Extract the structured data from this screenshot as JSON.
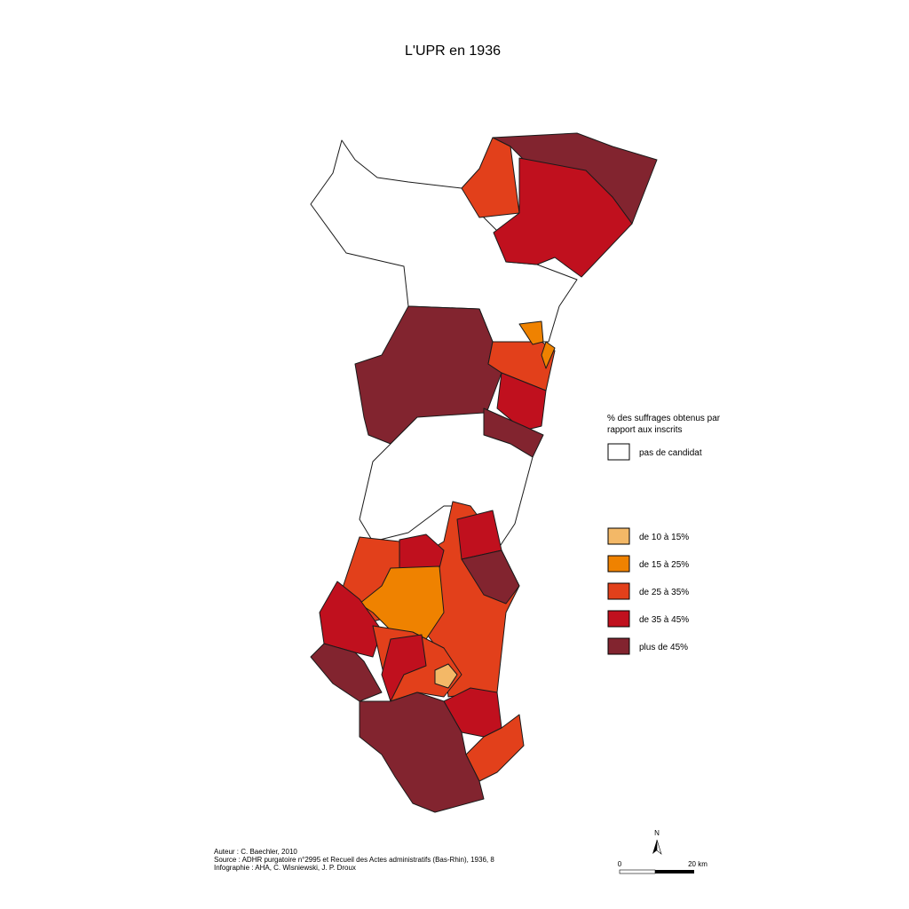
{
  "title": "L'UPR en 1936",
  "legend": {
    "title_lines": [
      "% des suffrages obtenus par",
      "rapport aux inscrits"
    ],
    "items": [
      {
        "label": "pas de candidat",
        "color": "#ffffff"
      },
      {
        "label": "de 10 à 15%",
        "color": "#f3b867"
      },
      {
        "label": "de 15 à 25%",
        "color": "#ef8200"
      },
      {
        "label": "de 25 à 35%",
        "color": "#e2401b"
      },
      {
        "label": "de 35 à 45%",
        "color": "#c0101e"
      },
      {
        "label": "plus de 45%",
        "color": "#82242f"
      }
    ]
  },
  "credits": [
    "Auteur : C. Baechler, 2010",
    "Source : ADHR purgatoire n°2995 et Recueil des Actes administratifs (Bas-Rhin), 1936, 8",
    "Infographie : AHA, C. Wisniewski, J. P. Droux"
  ],
  "scale": {
    "north": "N",
    "start": "0",
    "end": "20 km"
  }
}
